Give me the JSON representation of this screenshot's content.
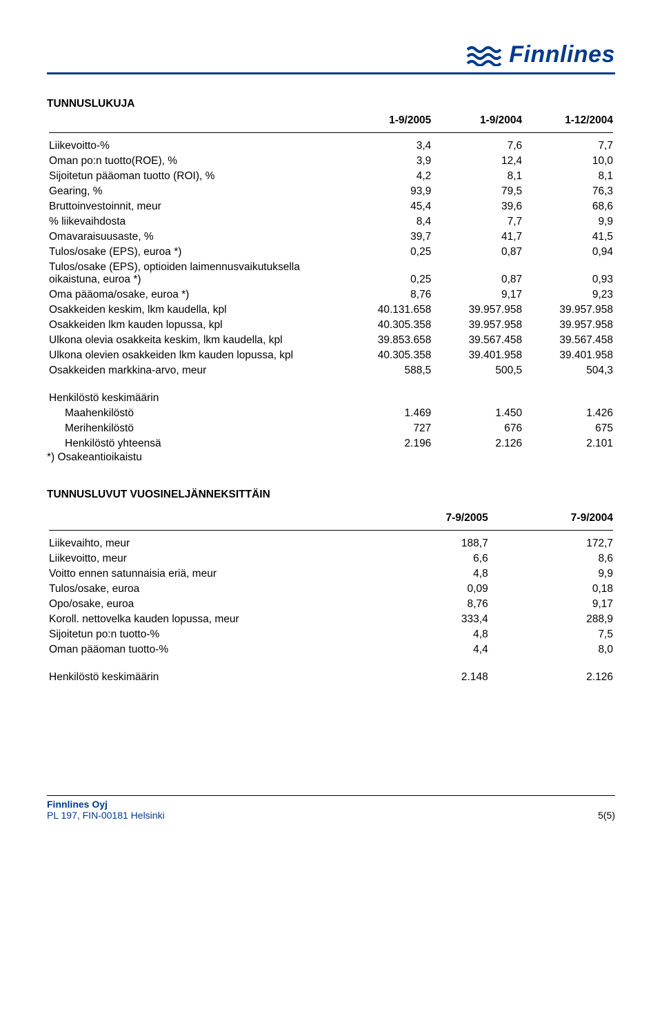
{
  "brand": {
    "name": "Finnlines",
    "color_primary": "#003a8c"
  },
  "section1": {
    "title": "TUNNUSLUKUJA",
    "headers": [
      "1-9/2005",
      "1-9/2004",
      "1-12/2004"
    ],
    "rows": [
      {
        "label": "Liikevoitto-%",
        "v": [
          "3,4",
          "7,6",
          "7,7"
        ]
      },
      {
        "label": "Oman po:n tuotto(ROE), %",
        "v": [
          "3,9",
          "12,4",
          "10,0"
        ]
      },
      {
        "label": "Sijoitetun pääoman tuotto (ROI), %",
        "v": [
          "4,2",
          "8,1",
          "8,1"
        ]
      },
      {
        "label": "Gearing, %",
        "v": [
          "93,9",
          "79,5",
          "76,3"
        ]
      },
      {
        "label": "Bruttoinvestoinnit, meur",
        "v": [
          "45,4",
          "39,6",
          "68,6"
        ]
      },
      {
        "label": "   % liikevaihdosta",
        "v": [
          "8,4",
          "7,7",
          "9,9"
        ]
      },
      {
        "label": "Omavaraisuusaste, %",
        "v": [
          "39,7",
          "41,7",
          "41,5"
        ]
      },
      {
        "label": "Tulos/osake (EPS), euroa *)",
        "v": [
          "0,25",
          "0,87",
          "0,94"
        ]
      },
      {
        "label": "Tulos/osake (EPS), optioiden laimennusvaikutuksella oikaistuna, euroa *)",
        "v": [
          "0,25",
          "0,87",
          "0,93"
        ]
      },
      {
        "label": "Oma pääoma/osake, euroa *)",
        "v": [
          "8,76",
          "9,17",
          "9,23"
        ]
      },
      {
        "label": "Osakkeiden keskim, lkm kaudella, kpl",
        "v": [
          "40.131.658",
          "39.957.958",
          "39.957.958"
        ]
      },
      {
        "label": "Osakkeiden lkm kauden lopussa, kpl",
        "v": [
          "40.305.358",
          "39.957.958",
          "39.957.958"
        ]
      },
      {
        "label": "Ulkona olevia osakkeita keskim, lkm kaudella, kpl",
        "v": [
          "39.853.658",
          "39.567.458",
          "39.567.458"
        ]
      },
      {
        "label": "Ulkona olevien osakkeiden lkm kauden lopussa, kpl",
        "v": [
          "40.305.358",
          "39.401.958",
          "39.401.958"
        ]
      },
      {
        "label": "Osakkeiden markkina-arvo, meur",
        "v": [
          "588,5",
          "500,5",
          "504,3"
        ]
      }
    ],
    "staff_title": "Henkilöstö keskimäärin",
    "staff_rows": [
      {
        "label": "Maahenkilöstö",
        "v": [
          "1.469",
          "1.450",
          "1.426"
        ]
      },
      {
        "label": "Merihenkilöstö",
        "v": [
          "727",
          "676",
          "675"
        ]
      },
      {
        "label": "Henkilöstö yhteensä",
        "v": [
          "2.196",
          "2.126",
          "2.101"
        ]
      }
    ],
    "footnote": "*) Osakeantioikaistu"
  },
  "section2": {
    "title": "TUNNUSLUVUT VUOSINELJÄNNEKSITTÄIN",
    "headers": [
      "7-9/2005",
      "7-9/2004"
    ],
    "rows": [
      {
        "label": "Liikevaihto, meur",
        "v": [
          "188,7",
          "172,7"
        ]
      },
      {
        "label": "Liikevoitto, meur",
        "v": [
          "6,6",
          "8,6"
        ]
      },
      {
        "label": "Voitto ennen satunnaisia eriä, meur",
        "v": [
          "4,8",
          "9,9"
        ]
      },
      {
        "label": "Tulos/osake, euroa",
        "v": [
          "0,09",
          "0,18"
        ]
      },
      {
        "label": "Opo/osake, euroa",
        "v": [
          "8,76",
          "9,17"
        ]
      },
      {
        "label": "Koroll. nettovelka kauden lopussa, meur",
        "v": [
          "333,4",
          "288,9"
        ]
      },
      {
        "label": "Sijoitetun po:n tuotto-%",
        "v": [
          "4,8",
          "7,5"
        ]
      },
      {
        "label": "Oman pääoman tuotto-%",
        "v": [
          "4,4",
          "8,0"
        ]
      }
    ],
    "staff_row": {
      "label": "Henkilöstö keskimäärin",
      "v": [
        "2.148",
        "2.126"
      ]
    }
  },
  "footer": {
    "company": "Finnlines Oyj",
    "address": "PL 197, FIN-00181 Helsinki",
    "page": "5(5)"
  }
}
